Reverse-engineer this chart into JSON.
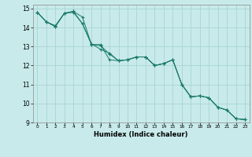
{
  "title": "",
  "xlabel": "Humidex (Indice chaleur)",
  "bg_color": "#c8eaea",
  "grid_color": "#aad4d4",
  "line_color": "#1a7a6a",
  "xlim": [
    -0.5,
    23.5
  ],
  "ylim": [
    9,
    15.2
  ],
  "xticks": [
    0,
    1,
    2,
    3,
    4,
    5,
    6,
    7,
    8,
    9,
    10,
    11,
    12,
    13,
    14,
    15,
    16,
    17,
    18,
    19,
    20,
    21,
    22,
    23
  ],
  "yticks": [
    9,
    10,
    11,
    12,
    13,
    14,
    15
  ],
  "series1_x": [
    0,
    1,
    2,
    3,
    4,
    5,
    6,
    7,
    8,
    9,
    10,
    11,
    12,
    13,
    14,
    15,
    16,
    17,
    18,
    19,
    20,
    21,
    22,
    23
  ],
  "series1_y": [
    14.8,
    14.3,
    14.1,
    14.75,
    14.85,
    14.55,
    13.1,
    13.1,
    12.3,
    12.25,
    12.3,
    12.45,
    12.45,
    12.0,
    12.1,
    12.3,
    11.0,
    10.35,
    10.4,
    10.3,
    9.8,
    9.65,
    9.2,
    9.15
  ],
  "series2_x": [
    0,
    1,
    2,
    3,
    4,
    5,
    6,
    7,
    8,
    9,
    10,
    11,
    12,
    13,
    14,
    15,
    16,
    17,
    18,
    19,
    20,
    21,
    22,
    23
  ],
  "series2_y": [
    14.8,
    14.3,
    14.05,
    14.75,
    14.85,
    14.2,
    13.15,
    12.85,
    12.65,
    12.25,
    12.3,
    12.45,
    12.45,
    12.0,
    12.1,
    12.3,
    11.0,
    10.35,
    10.4,
    10.3,
    9.8,
    9.65,
    9.2,
    9.15
  ],
  "series3_x": [
    0,
    1,
    2,
    3,
    4,
    5,
    6,
    7,
    8,
    9,
    10,
    11,
    12,
    13,
    14,
    15,
    16,
    17,
    18,
    19,
    20,
    21,
    22,
    23
  ],
  "series3_y": [
    14.8,
    14.3,
    14.05,
    14.75,
    14.8,
    14.2,
    13.1,
    13.05,
    12.6,
    12.25,
    12.3,
    12.45,
    12.45,
    12.0,
    12.1,
    12.3,
    11.0,
    10.35,
    10.4,
    10.3,
    9.8,
    9.65,
    9.2,
    9.15
  ]
}
